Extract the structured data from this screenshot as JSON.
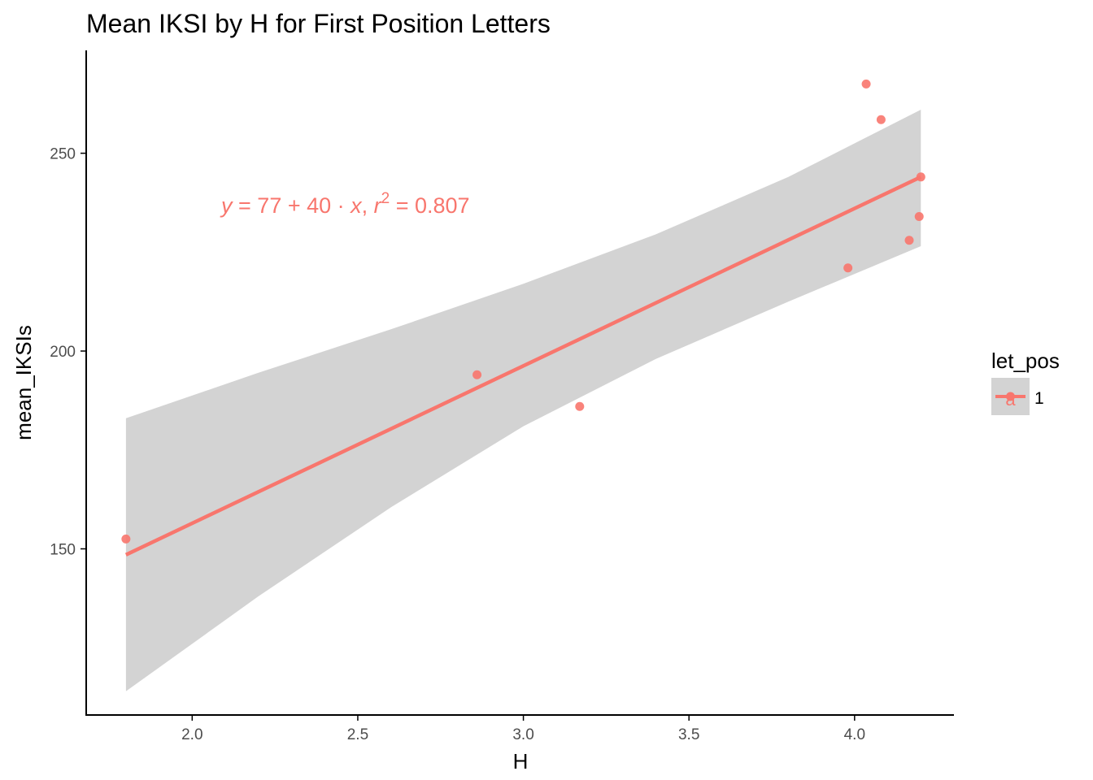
{
  "chart_data": {
    "type": "scatter",
    "title": "Mean IKSI by H for First Position Letters",
    "xlabel": "H",
    "ylabel": "mean_IKSIs",
    "xlim": [
      1.68,
      4.3
    ],
    "ylim": [
      108,
      276
    ],
    "x_ticks": [
      2.0,
      2.5,
      3.0,
      3.5,
      4.0
    ],
    "x_tick_labels": [
      "2.0",
      "2.5",
      "3.0",
      "3.5",
      "4.0"
    ],
    "y_ticks": [
      150,
      200,
      250
    ],
    "y_tick_labels": [
      "150",
      "200",
      "250"
    ],
    "grid": false,
    "series": [
      {
        "name": "1",
        "color": "#F8766D",
        "points": [
          {
            "x": 1.8,
            "y": 152.5
          },
          {
            "x": 2.86,
            "y": 194.0
          },
          {
            "x": 3.17,
            "y": 186.0
          },
          {
            "x": 3.98,
            "y": 221.0
          },
          {
            "x": 4.035,
            "y": 267.5
          },
          {
            "x": 4.08,
            "y": 258.5
          },
          {
            "x": 4.165,
            "y": 228.0
          },
          {
            "x": 4.195,
            "y": 234.0
          },
          {
            "x": 4.2,
            "y": 244.0
          }
        ]
      }
    ],
    "fit": {
      "method": "lm",
      "x_range": [
        1.8,
        4.2
      ],
      "y_range": [
        148.5,
        244.0
      ],
      "confidence_band": {
        "x": [
          1.8,
          2.2,
          2.6,
          3.0,
          3.4,
          3.8,
          4.2
        ],
        "lower": [
          114.0,
          138.0,
          160.5,
          181.0,
          198.0,
          212.5,
          226.5
        ],
        "upper": [
          183.0,
          194.5,
          205.5,
          217.0,
          229.5,
          244.0,
          261.0
        ]
      },
      "band_color": "#D3D3D3"
    },
    "annotation": {
      "y_part": "y",
      "eq_part": " = 77 + 40 · ",
      "x_part": "x",
      "sep_part": ",  ",
      "r_part": "r",
      "sup_part": "2",
      "val_part": " = 0.807",
      "color": "#F8766D",
      "anchor_data": {
        "x": 2.1,
        "y": 237
      }
    },
    "legend": {
      "title": "let_pos",
      "entries": [
        "1"
      ],
      "key_letter": "a",
      "placement": "right"
    }
  }
}
